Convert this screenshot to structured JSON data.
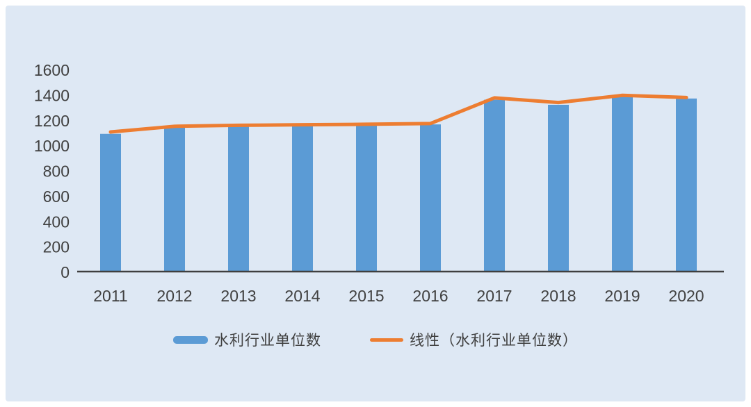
{
  "chart_data": {
    "type": "bar",
    "title": "",
    "xlabel": "",
    "ylabel": "",
    "categories": [
      "2011",
      "2012",
      "2013",
      "2014",
      "2015",
      "2016",
      "2017",
      "2018",
      "2019",
      "2020"
    ],
    "series": [
      {
        "name": "水利行业单位数",
        "type": "bar",
        "color": "#5B9BD5",
        "values": [
          1090,
          1140,
          1150,
          1155,
          1160,
          1165,
          1360,
          1320,
          1385,
          1370
        ]
      },
      {
        "name": "线性（水利行业单位数）",
        "type": "line",
        "color": "#ED7D31",
        "values": [
          1105,
          1150,
          1158,
          1162,
          1166,
          1172,
          1375,
          1338,
          1395,
          1378
        ]
      }
    ],
    "ylim": [
      0,
      1600
    ],
    "ytick_step": 200,
    "ytick_labels": [
      "0",
      "200",
      "400",
      "600",
      "800",
      "1000",
      "1200",
      "1400",
      "1600"
    ],
    "grid": false,
    "legend_position": "bottom",
    "background_color": "#DEE8F4",
    "axis_color": "#3F3F3F",
    "text_color": "#404040"
  }
}
